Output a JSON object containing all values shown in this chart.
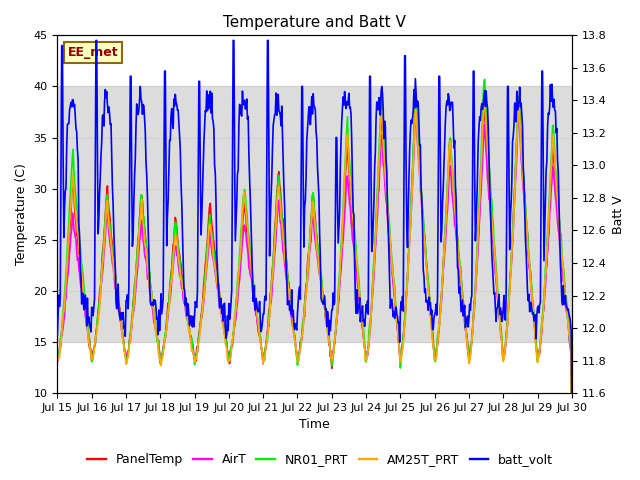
{
  "title": "Temperature and Batt V",
  "xlabel": "Time",
  "ylabel_left": "Temperature (C)",
  "ylabel_right": "Batt V",
  "annotation": "EE_met",
  "xlim_start": 0,
  "xlim_end": 360,
  "ylim_left": [
    10,
    45
  ],
  "ylim_right": [
    11.6,
    13.8
  ],
  "yticks_left": [
    10,
    15,
    20,
    25,
    30,
    35,
    40,
    45
  ],
  "yticks_right": [
    11.6,
    11.8,
    12.0,
    12.2,
    12.4,
    12.6,
    12.8,
    13.0,
    13.2,
    13.4,
    13.6,
    13.8
  ],
  "xtick_labels": [
    "Jul 15",
    "Jul 16",
    "Jul 17",
    "Jul 18",
    "Jul 19",
    "Jul 20",
    "Jul 21",
    "Jul 22",
    "Jul 23",
    "Jul 24",
    "Jul 25",
    "Jul 26",
    "Jul 27",
    "Jul 28",
    "Jul 29",
    "Jul 30"
  ],
  "xtick_positions": [
    0,
    24,
    48,
    72,
    96,
    120,
    144,
    168,
    192,
    216,
    240,
    264,
    288,
    312,
    336,
    360
  ],
  "legend": [
    {
      "label": "PanelTemp",
      "color": "#ff0000",
      "lw": 1.2
    },
    {
      "label": "AirT",
      "color": "#ff00ff",
      "lw": 1.2
    },
    {
      "label": "NR01_PRT",
      "color": "#00ee00",
      "lw": 1.2
    },
    {
      "label": "AM25T_PRT",
      "color": "#ffaa00",
      "lw": 1.2
    },
    {
      "label": "batt_volt",
      "color": "#0000ff",
      "lw": 1.2
    }
  ],
  "bg_band_ymin": 15,
  "bg_band_ymax": 40,
  "bg_band_color": "#dcdcdc",
  "title_fontsize": 11,
  "label_fontsize": 9,
  "tick_fontsize": 8,
  "legend_fontsize": 9
}
